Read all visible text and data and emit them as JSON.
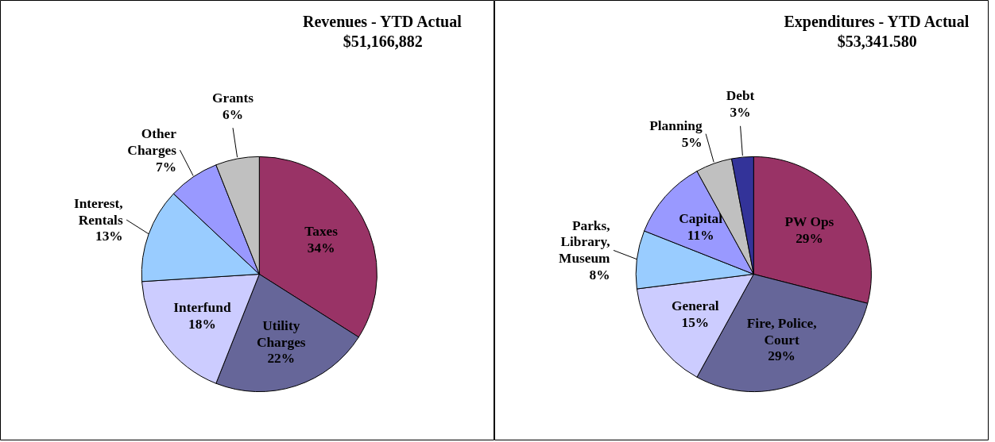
{
  "chart_data": [
    {
      "type": "pie",
      "title": "Revenues - YTD Actual",
      "subtitle": "$51,166,882",
      "categories": [
        "Taxes",
        "Utility\nCharges",
        "Interfund",
        "Interest,\nRentals",
        "Other\nCharges",
        "Grants"
      ],
      "values": [
        34,
        22,
        18,
        13,
        7,
        6
      ],
      "value_labels": [
        "34%",
        "22%",
        "18%",
        "13%",
        "7%",
        "6%"
      ],
      "colors": [
        "#993366",
        "#666699",
        "#ccccff",
        "#99ccff",
        "#9999ff",
        "#c0c0c0"
      ]
    },
    {
      "type": "pie",
      "title": "Expenditures - YTD Actual",
      "subtitle": "$53,341.580",
      "categories": [
        "PW Ops",
        "Fire, Police,\nCourt",
        "General",
        "Parks,\nLibrary,\nMuseum",
        "Capital",
        "Planning",
        "Debt"
      ],
      "values": [
        29,
        29,
        15,
        8,
        11,
        5,
        3
      ],
      "value_labels": [
        "29%",
        "29%",
        "15%",
        "8%",
        "11%",
        "5%",
        "3%"
      ],
      "colors": [
        "#993366",
        "#666699",
        "#ccccff",
        "#99ccff",
        "#9999ff",
        "#c0c0c0",
        "#333399"
      ]
    }
  ]
}
